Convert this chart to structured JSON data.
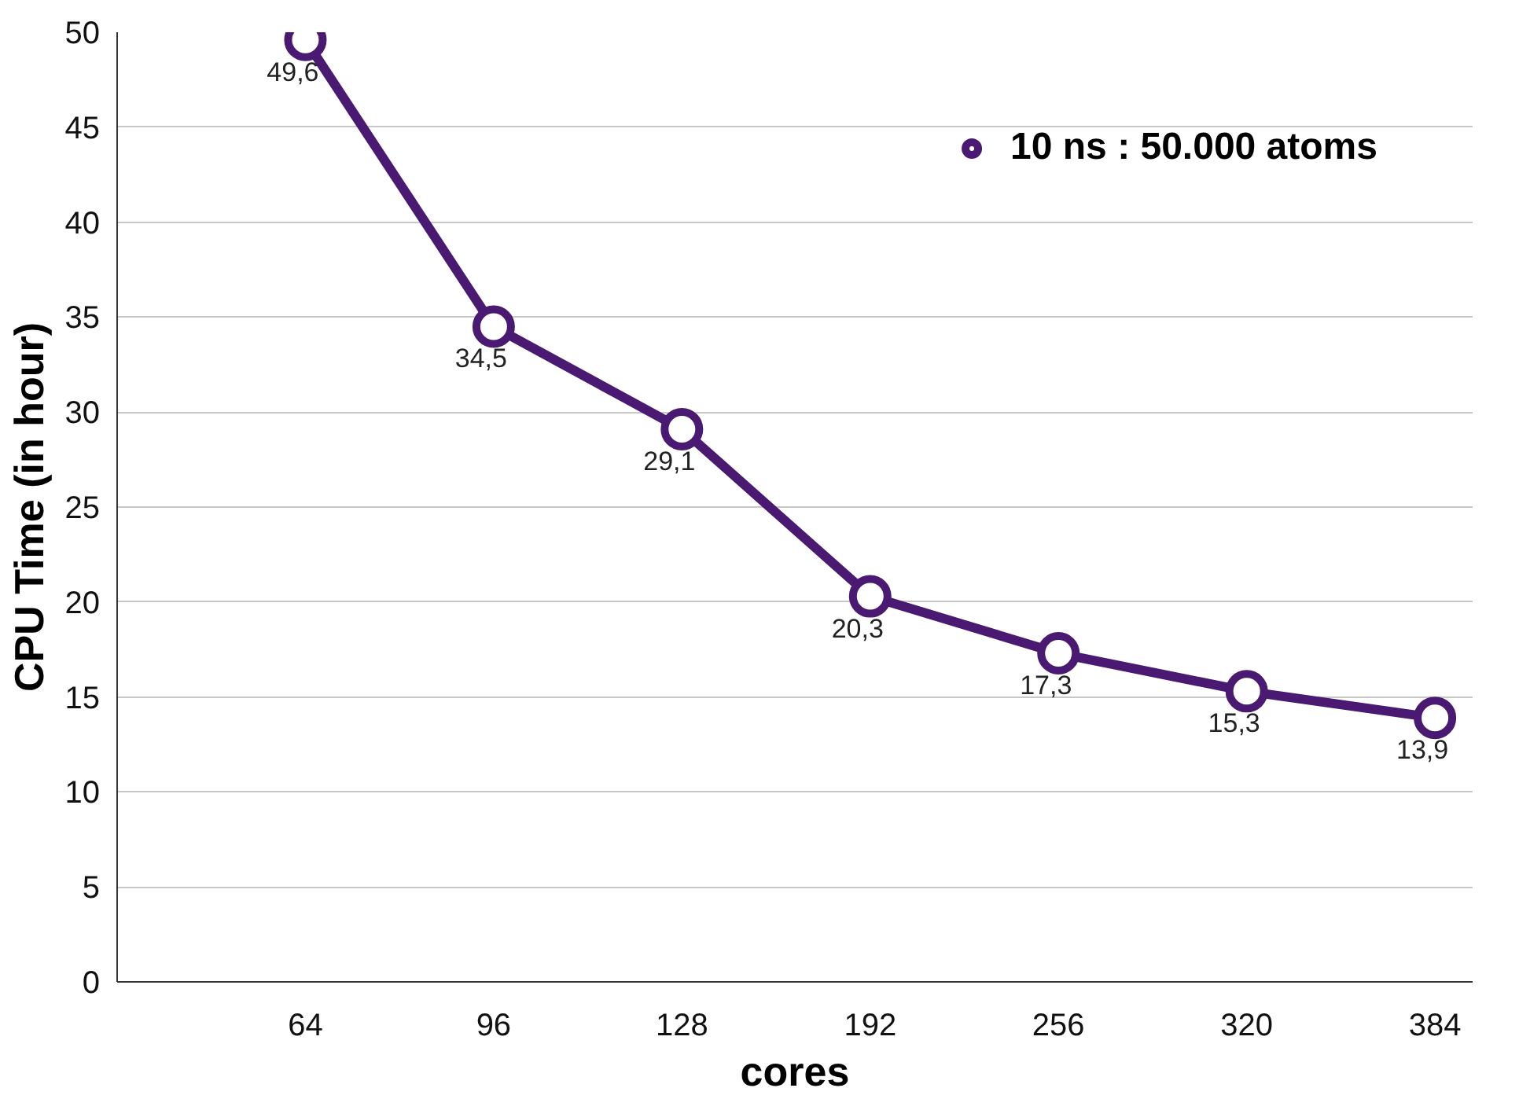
{
  "chart_data": {
    "type": "line",
    "xlabel": "cores",
    "ylabel": "CPU Time (in hour)",
    "categories": [
      "64",
      "96",
      "128",
      "192",
      "256",
      "320",
      "384"
    ],
    "series": [
      {
        "name": "10 ns : 50.000 atoms",
        "color": "#4a1a72",
        "values": [
          49.6,
          34.5,
          29.1,
          20.3,
          17.3,
          15.3,
          13.9
        ],
        "value_labels": [
          "49,6",
          "34,5",
          "29,1",
          "20,3",
          "17,3",
          "15,3",
          "13,9"
        ]
      }
    ],
    "ylim": [
      0,
      50
    ],
    "yticks": [
      0,
      5,
      10,
      15,
      20,
      25,
      30,
      35,
      40,
      45,
      50
    ],
    "grid": "y",
    "legend": "top right",
    "marker": "circle",
    "line_style": "solid"
  }
}
